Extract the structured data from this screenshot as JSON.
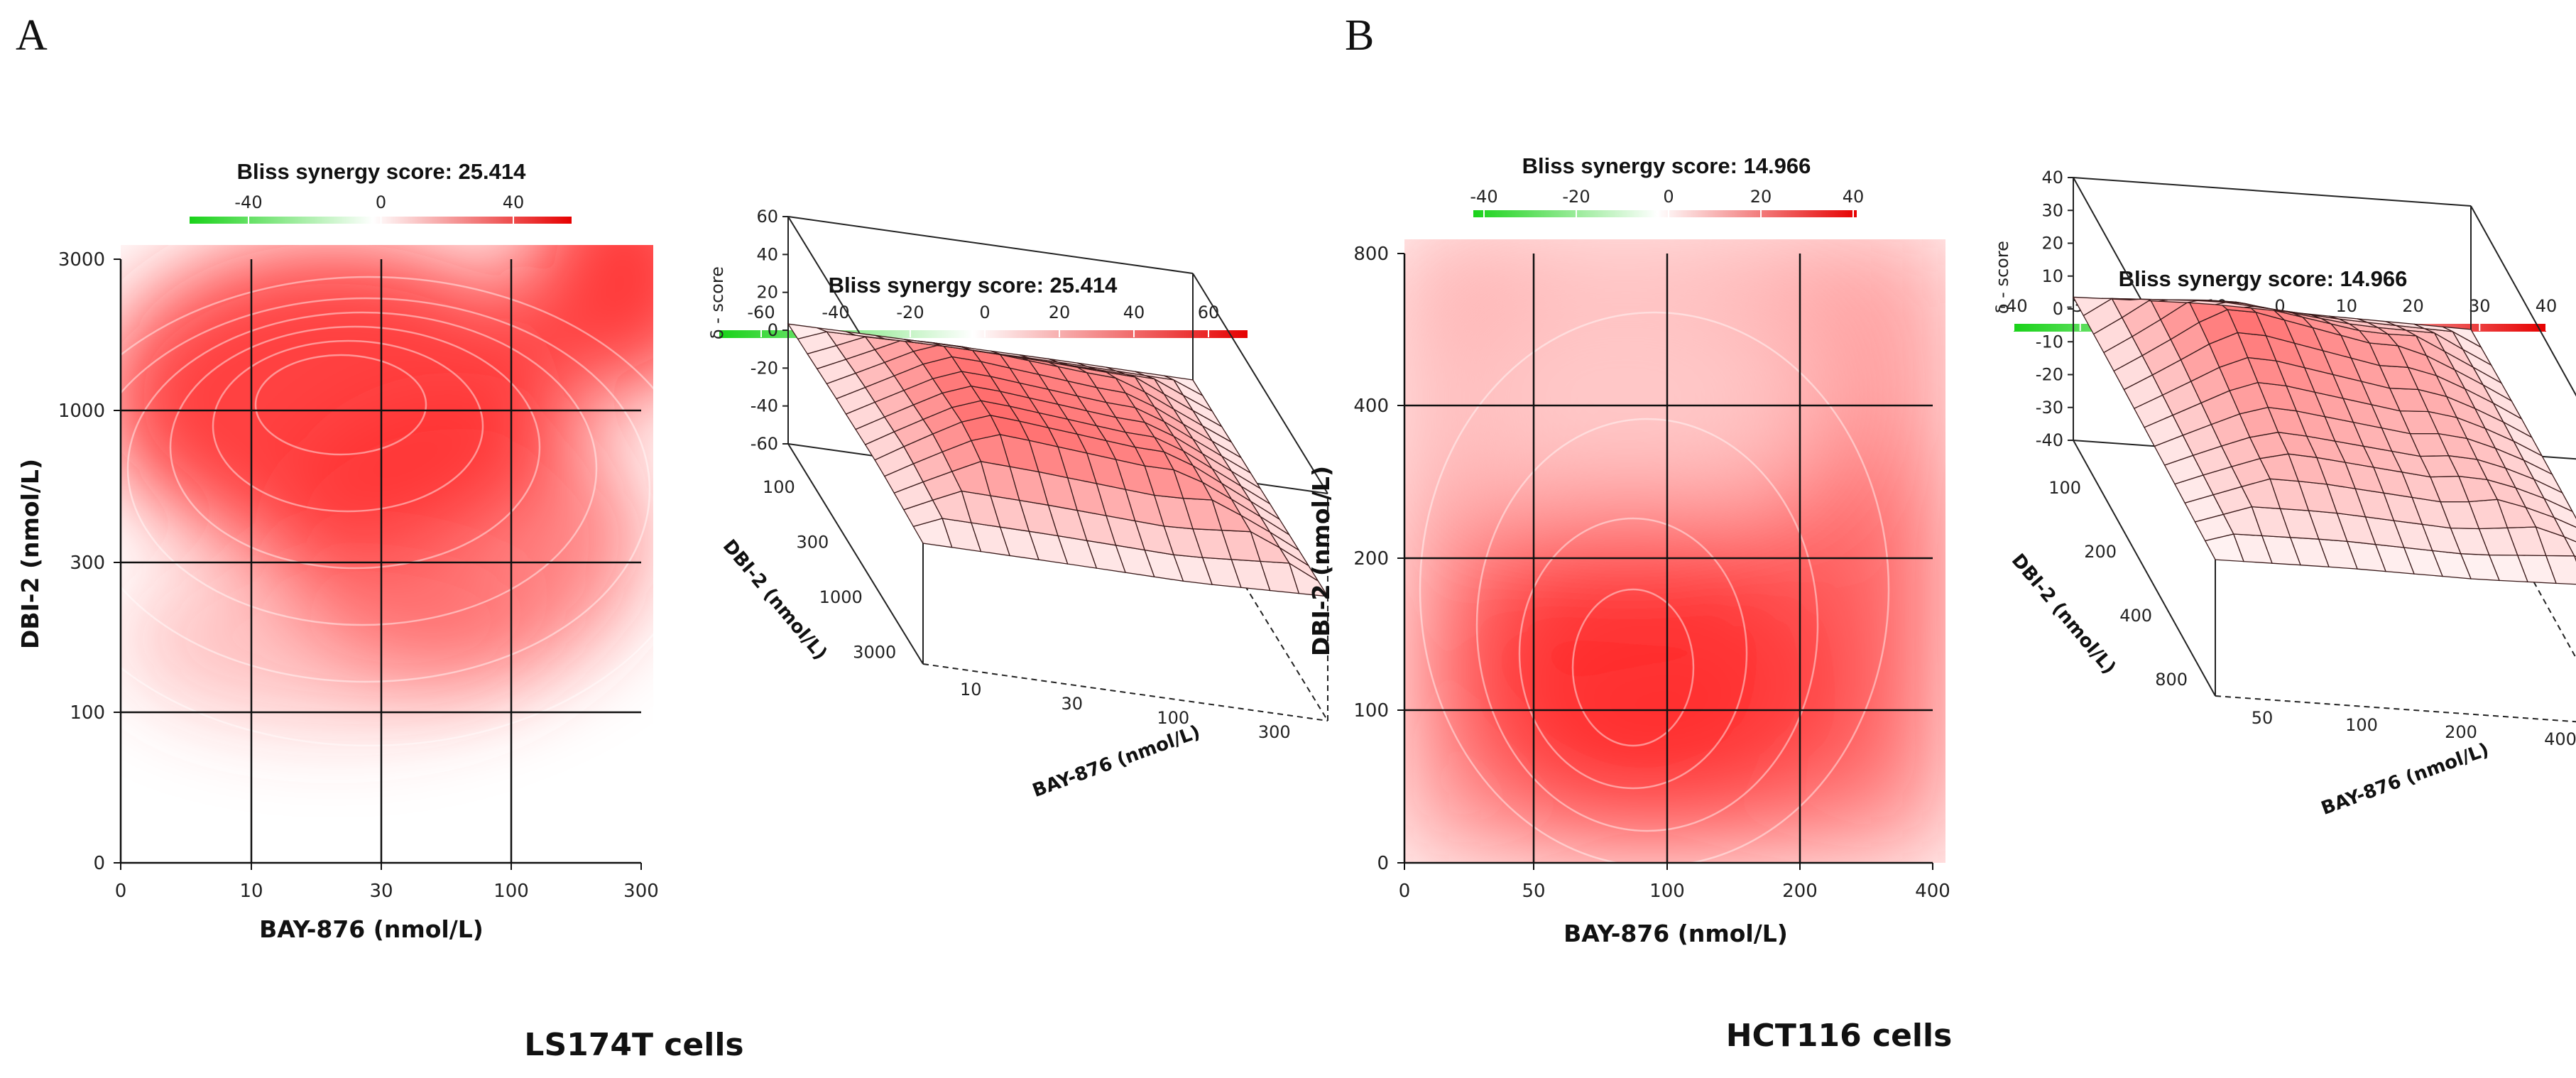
{
  "panels": [
    {
      "letter": "A",
      "caption": "LS174T cells",
      "heatmap": {
        "score_title": "Bliss synergy score: 25.414",
        "colorbar_ticks": [
          "-40",
          "0",
          "40"
        ],
        "xlabel": "BAY-876 (nmol/L)",
        "ylabel": "DBI-2 (nmol/L)",
        "xticks": [
          "0",
          "10",
          "30",
          "100",
          "300"
        ],
        "yticks": [
          "0",
          "100",
          "300",
          "1000",
          "3000"
        ]
      },
      "surface": {
        "score_title": "Bliss synergy score: 25.414",
        "colorbar_ticks": [
          "-60",
          "-40",
          "-20",
          "0",
          "20",
          "40",
          "60"
        ],
        "zlabel": "δ - score",
        "zticks": [
          "60",
          "40",
          "20",
          "0",
          "-20",
          "-40",
          "-60"
        ],
        "xlabel": "BAY-876 (nmol/L)",
        "ylabel": "DBI-2 (nmol/L)",
        "xticks": [
          "10",
          "30",
          "100",
          "300"
        ],
        "yticks": [
          "3000",
          "1000",
          "300",
          "100"
        ]
      }
    },
    {
      "letter": "B",
      "caption": "HCT116 cells",
      "heatmap": {
        "score_title": "Bliss synergy score: 14.966",
        "colorbar_ticks": [
          "-40",
          "-20",
          "0",
          "20",
          "40"
        ],
        "xlabel": "BAY-876 (nmol/L)",
        "ylabel": "DBI-2 (nmol/L)",
        "xticks": [
          "0",
          "50",
          "100",
          "200",
          "400"
        ],
        "yticks": [
          "0",
          "100",
          "200",
          "400",
          "800"
        ]
      },
      "surface": {
        "score_title": "Bliss synergy score: 14.966",
        "colorbar_ticks": [
          "-40",
          "-30",
          "-20",
          "-10",
          "0",
          "10",
          "20",
          "30",
          "40"
        ],
        "zlabel": "δ - score",
        "zticks": [
          "40",
          "30",
          "20",
          "10",
          "0",
          "-10",
          "-20",
          "-30",
          "-40"
        ],
        "xlabel": "BAY-876 (nmol/L)",
        "ylabel": "DBI-2 (nmol/L)",
        "xticks": [
          "50",
          "100",
          "200",
          "400"
        ],
        "yticks": [
          "800",
          "400",
          "200",
          "100"
        ]
      }
    }
  ],
  "chart_data": [
    {
      "type": "heatmap",
      "title": "Bliss synergy score: 25.414",
      "xlabel": "BAY-876 (nmol/L)",
      "ylabel": "DBI-2 (nmol/L)",
      "x": [
        "0",
        "10",
        "30",
        "100",
        "300"
      ],
      "y": [
        "0",
        "100",
        "300",
        "1000",
        "3000"
      ],
      "color_scale": {
        "min": -40,
        "max": 40,
        "low": "#00cc00",
        "mid": "#ffffff",
        "high": "#ff0000"
      },
      "z": [
        [
          0,
          5,
          5,
          5,
          3
        ],
        [
          8,
          22,
          26,
          28,
          25
        ],
        [
          14,
          35,
          36,
          30,
          28
        ],
        [
          18,
          42,
          38,
          32,
          33
        ],
        [
          12,
          25,
          24,
          20,
          38
        ]
      ],
      "grid": true
    },
    {
      "type": "surface",
      "title": "Bliss synergy score: 25.414",
      "xlabel": "BAY-876 (nmol/L)",
      "ylabel": "DBI-2 (nmol/L)",
      "zlabel": "δ - score",
      "x": [
        "10",
        "30",
        "100",
        "300"
      ],
      "y": [
        "100",
        "300",
        "1000",
        "3000"
      ],
      "zlim": [
        -60,
        60
      ],
      "color_scale": {
        "min": -60,
        "max": 60,
        "low": "#00cc00",
        "mid": "#ffffff",
        "high": "#ff0000"
      },
      "z": [
        [
          22,
          26,
          28,
          25
        ],
        [
          35,
          36,
          30,
          28
        ],
        [
          42,
          38,
          32,
          33
        ],
        [
          25,
          24,
          20,
          38
        ]
      ]
    },
    {
      "type": "heatmap",
      "title": "Bliss synergy score: 14.966",
      "xlabel": "BAY-876 (nmol/L)",
      "ylabel": "DBI-2 (nmol/L)",
      "x": [
        "0",
        "50",
        "100",
        "200",
        "400"
      ],
      "y": [
        "0",
        "100",
        "200",
        "400",
        "800"
      ],
      "color_scale": {
        "min": -40,
        "max": 40,
        "low": "#00cc00",
        "mid": "#ffffff",
        "high": "#ff0000"
      },
      "z": [
        [
          0,
          8,
          14,
          10,
          6
        ],
        [
          12,
          24,
          30,
          22,
          16
        ],
        [
          10,
          22,
          24,
          16,
          20
        ],
        [
          8,
          16,
          14,
          10,
          18
        ],
        [
          4,
          10,
          12,
          8,
          14
        ]
      ],
      "grid": true
    },
    {
      "type": "surface",
      "title": "Bliss synergy score: 14.966",
      "xlabel": "BAY-876 (nmol/L)",
      "ylabel": "DBI-2 (nmol/L)",
      "zlabel": "δ - score",
      "x": [
        "50",
        "100",
        "200",
        "400"
      ],
      "y": [
        "100",
        "200",
        "400",
        "800"
      ],
      "zlim": [
        -40,
        40
      ],
      "color_scale": {
        "min": -40,
        "max": 40,
        "low": "#00cc00",
        "mid": "#ffffff",
        "high": "#ff0000"
      },
      "z": [
        [
          24,
          30,
          22,
          16
        ],
        [
          22,
          24,
          16,
          20
        ],
        [
          16,
          14,
          10,
          18
        ],
        [
          10,
          12,
          8,
          14
        ]
      ]
    }
  ]
}
